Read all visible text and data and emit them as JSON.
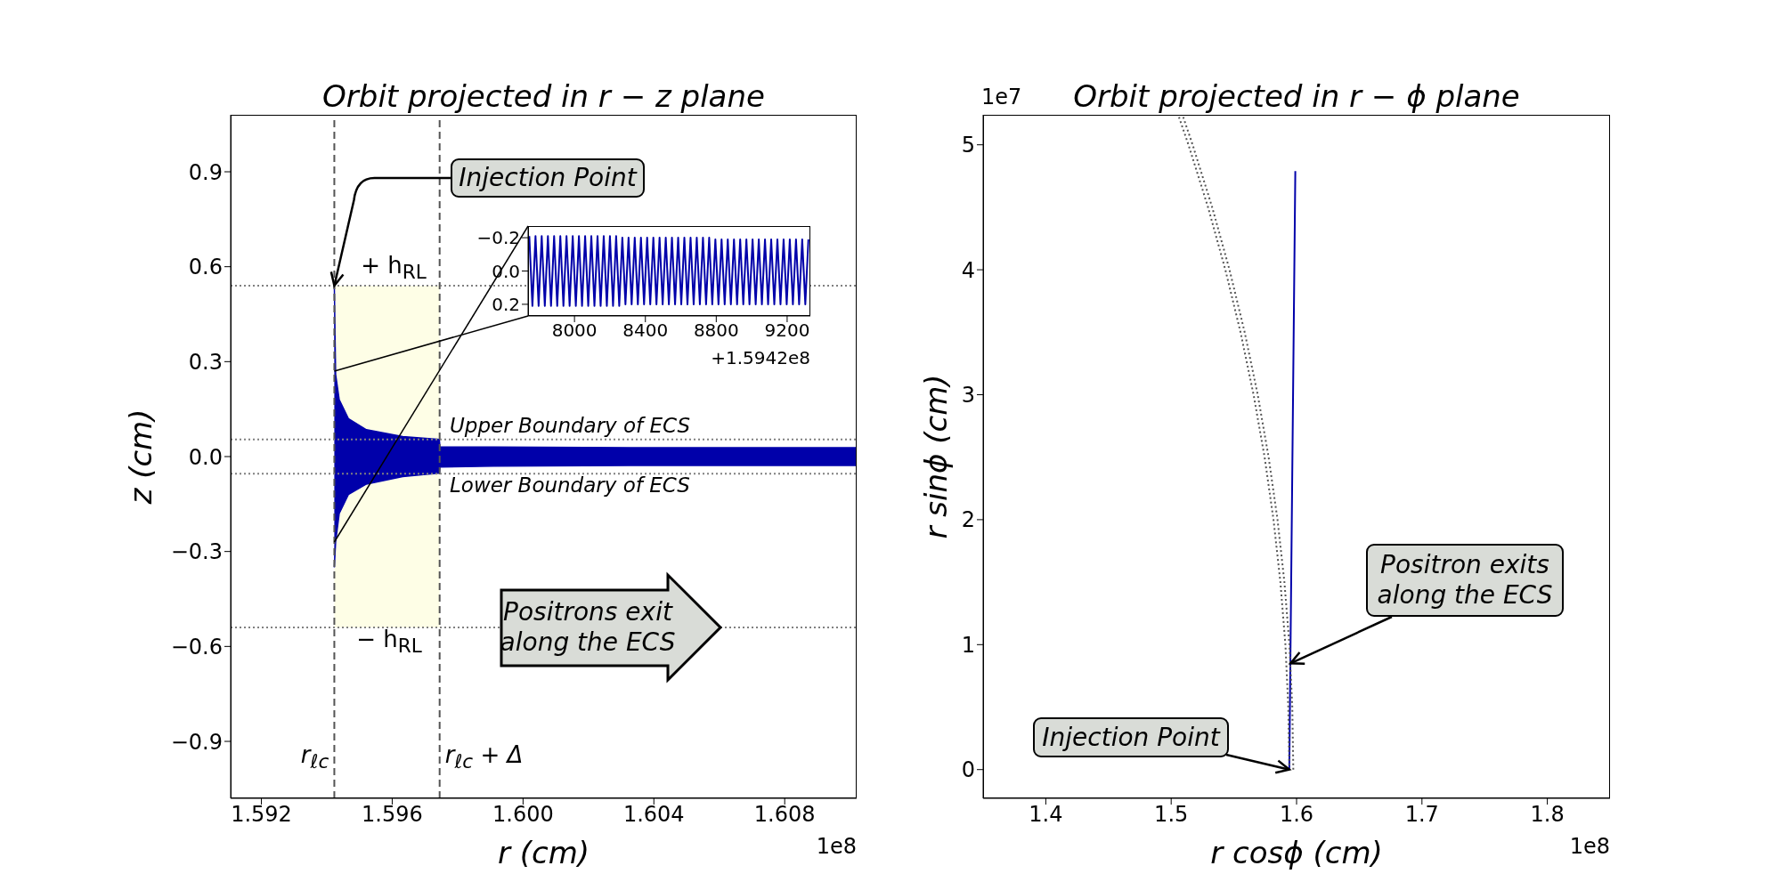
{
  "chart_data": [
    {
      "type": "area",
      "title": "Orbit projected in r − z plane",
      "xlabel": "r (cm)",
      "ylabel": "z (cm)",
      "x": [
        1.59423,
        1.59427,
        1.59438,
        1.59466,
        1.59521,
        1.59632,
        1.59744,
        1.59746,
        1.5991,
        1.6033,
        1.6102
      ],
      "series": [
        {
          "color": "#0000aa",
          "values": [
            0.54,
            0.26,
            0.18,
            0.12,
            0.085,
            0.063,
            0.054,
            0.03,
            0.03,
            0.028,
            0.028
          ]
        },
        {
          "color": "#0000aa",
          "values": [
            -0.35,
            -0.27,
            -0.18,
            -0.12,
            -0.087,
            -0.063,
            -0.052,
            -0.033,
            -0.03,
            -0.028,
            -0.028
          ]
        }
      ],
      "xlim": [
        1.59106,
        1.6102
      ],
      "xticks": [
        1.592,
        1.596,
        {
          "value": 1.6,
          "label": "1.600"
        },
        1.604,
        1.608
      ],
      "ylim": [
        -1.08,
        1.08
      ],
      "yticks": [
        {
          "value": -0.9,
          "label": "−0.9"
        },
        {
          "value": -0.6,
          "label": "−0.6"
        },
        {
          "value": -0.3,
          "label": "−0.3"
        },
        {
          "value": 0,
          "label": "0.0"
        },
        0.3,
        0.6,
        0.9
      ],
      "ref_lines": [
        {
          "axis": "x",
          "value": 1.59423,
          "label": "r$_{ℓc}$",
          "color": "#555555",
          "line_style": "dashed"
        },
        {
          "axis": "x",
          "value": 1.59745,
          "label": "r$_{ℓc}$ + Δ",
          "color": "#555555",
          "line_style": "dashed"
        },
        {
          "axis": "y",
          "value": 0.54,
          "label": "+ h$_{RL}$",
          "color": "#808080",
          "line_style": "dotted"
        },
        {
          "axis": "y",
          "value": -0.54,
          "label": "− h$_{RL}$",
          "color": "#808080",
          "line_style": "dotted"
        },
        {
          "axis": "y",
          "value": 0.054,
          "label": "Upper Boundary of ECS",
          "color": "#808080",
          "line_style": "dotted"
        },
        {
          "axis": "y",
          "value": -0.054,
          "label": "Lower Boundary of ECS",
          "color": "#808080",
          "line_style": "dotted"
        }
      ],
      "bands": [
        {
          "axis": "x",
          "from": 1.59423,
          "to": 1.59745,
          "color": "#fefee6"
        }
      ],
      "annotations": [
        {
          "text": "Injection Point",
          "x": 1.59423,
          "y": 0.54
        },
        "Positrons exit along the ECS",
        "1e8"
      ]
    },
    {
      "type": "line",
      "color": "#0000aa",
      "x": [
        7745,
        7762.5,
        7780,
        7797.5,
        7815,
        7832.5,
        7850,
        7867.5,
        7885,
        7902.5,
        7920,
        7937.5,
        7955,
        7972.5,
        7990,
        8007.5,
        8025,
        8042.5,
        8060,
        8077.5,
        8095,
        8112.5,
        8130,
        8147.5,
        8165,
        8182.5,
        8200,
        8217.5,
        8235,
        8252.5,
        8270,
        8287.5,
        8305,
        8322.5,
        8340,
        8357.5,
        8375,
        8392.5,
        8410,
        8427.5,
        8445,
        8462.5,
        8480,
        8497.5,
        8515,
        8532.5,
        8550,
        8567.5,
        8585,
        8602.5,
        8620,
        8637.5,
        8655,
        8672.5,
        8690,
        8707.5,
        8725,
        8742.5,
        8760,
        8777.5,
        8795,
        8812.5,
        8830,
        8847.5,
        8865,
        8882.5,
        8900,
        8917.5,
        8935,
        8952.5,
        8970,
        8987.5,
        9005,
        9022.5,
        9040,
        9057.5,
        9075,
        9092.5,
        9110,
        9127.5,
        9145,
        9162.5,
        9180,
        9197.5,
        9215,
        9232.5,
        9250,
        9267.5,
        9285,
        9302.5,
        9320
      ],
      "values": [
        -0.21,
        0.21,
        -0.21,
        0.21,
        -0.21,
        0.21,
        -0.21,
        0.21,
        -0.21,
        0.21,
        -0.21,
        0.21,
        -0.21,
        0.21,
        -0.21,
        0.21,
        -0.21,
        0.21,
        -0.21,
        0.21,
        -0.21,
        0.21,
        -0.21,
        0.21,
        -0.21,
        0.21,
        -0.21,
        0.21,
        -0.21,
        0.21,
        -0.2,
        0.2,
        -0.2,
        0.2,
        -0.2,
        0.2,
        -0.2,
        0.2,
        -0.2,
        0.2,
        -0.2,
        0.2,
        -0.2,
        0.2,
        -0.2,
        0.2,
        -0.2,
        0.2,
        -0.2,
        0.2,
        -0.2,
        0.2,
        -0.2,
        0.2,
        -0.2,
        0.2,
        -0.2,
        0.2,
        -0.2,
        0.2,
        -0.19,
        0.2,
        -0.19,
        0.2,
        -0.19,
        0.2,
        -0.19,
        0.2,
        -0.19,
        0.2,
        -0.19,
        0.2,
        -0.19,
        0.2,
        -0.19,
        0.2,
        -0.19,
        0.2,
        -0.19,
        0.2,
        -0.19,
        0.2,
        -0.19,
        0.2,
        -0.19,
        0.2,
        -0.19,
        0.2,
        -0.19,
        0.2,
        -0.19
      ],
      "xlim": [
        7738,
        9331
      ],
      "xticks": [
        8000,
        8400,
        8800,
        9200
      ],
      "ylim": [
        0.27,
        -0.27
      ],
      "yticks": [
        {
          "value": -0.2,
          "label": "−0.2"
        },
        {
          "value": 0,
          "label": "0.0"
        },
        0.2
      ],
      "annotations": [
        "+1.5942e8"
      ]
    },
    {
      "type": "line",
      "title": "Orbit projected in r − ϕ plane",
      "xlabel": "r cosϕ (cm)",
      "ylabel": "r sinϕ (cm)",
      "series": [
        {
          "color": "#0000aa",
          "x": [
            1.5942,
            1.5966,
            1.599
          ],
          "values": [
            0,
            2.4,
            4.79
          ]
        },
        {
          "color": "#555555",
          "line_style": "dotted",
          "x": [
            1.5942,
            1.5934,
            1.5911,
            1.5871,
            1.5816,
            1.5745,
            1.5657,
            1.5553,
            1.5432,
            1.5294,
            1.5138,
            1.5056
          ],
          "values": [
            0,
            0.5,
            1,
            1.5,
            2,
            2.5,
            3,
            3.5,
            4,
            4.5,
            5,
            5.24
          ]
        },
        {
          "color": "#555555",
          "line_style": "dotted",
          "x": [
            1.5974,
            1.5966,
            1.5943,
            1.5903,
            1.5848,
            1.5777,
            1.569,
            1.5586,
            1.5465,
            1.5327,
            1.5171,
            1.509
          ],
          "values": [
            0,
            0.5,
            1,
            1.5,
            2,
            2.5,
            3,
            3.5,
            4,
            4.5,
            5,
            5.24
          ]
        }
      ],
      "xlim": [
        1.35,
        1.85
      ],
      "xticks": [
        1.4,
        1.5,
        1.6,
        1.7,
        1.8
      ],
      "ylim": [
        -0.23,
        5.24
      ],
      "yticks": [
        0,
        1,
        2,
        3,
        4,
        5
      ],
      "annotations": [
        "1e7",
        "1e8",
        {
          "text": "Injection Point",
          "x": 1.5942,
          "y": 0
        },
        {
          "text": "Positron exits along the ECS",
          "x": 1.5952,
          "y": 0.85
        }
      ]
    }
  ]
}
